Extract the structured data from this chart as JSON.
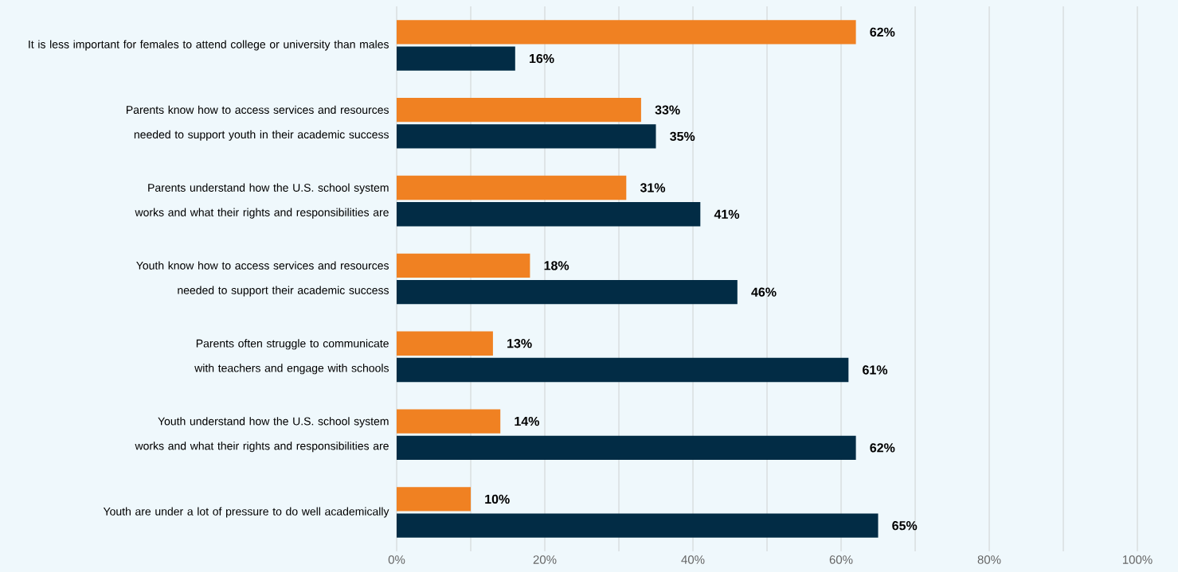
{
  "chart_data": {
    "type": "bar",
    "orientation": "horizontal",
    "categories": [
      "It is less important for females to attend college or university than males",
      "Parents know how to access services and resources needed to support youth in their academic success",
      "Parents understand how the U.S. school system works and what their rights and responsibilities are",
      "Youth know how to access services and resources needed to support their academic success",
      "Parents often struggle to communicate with teachers and engage with schools",
      "Youth understand how the U.S. school system works and what their rights and responsibilities are",
      "Youth are under a lot of pressure to do well academically"
    ],
    "series": [
      {
        "color": "#f08122",
        "values": [
          62,
          33,
          31,
          18,
          13,
          14,
          10
        ],
        "value_labels": [
          "62%",
          "33%",
          "31%",
          "18%",
          "13%",
          "14%",
          "10%"
        ]
      },
      {
        "color": "#022c45",
        "values": [
          16,
          35,
          41,
          46,
          61,
          62,
          65
        ],
        "value_labels": [
          "16%",
          "35%",
          "41%",
          "46%",
          "61%",
          "62%",
          "65%"
        ]
      }
    ],
    "xlim": [
      0,
      100
    ],
    "xticks": [
      {
        "value": 0,
        "label": "0%"
      },
      {
        "value": 10,
        "label": null
      },
      {
        "value": 20,
        "label": "20%"
      },
      {
        "value": 30,
        "label": null
      },
      {
        "value": 40,
        "label": "40%"
      },
      {
        "value": 50,
        "label": null
      },
      {
        "value": 60,
        "label": "60%"
      },
      {
        "value": 70,
        "label": null
      },
      {
        "value": 80,
        "label": "80%"
      },
      {
        "value": 90,
        "label": null
      },
      {
        "value": 100,
        "label": "100%"
      }
    ],
    "grid": "x"
  }
}
